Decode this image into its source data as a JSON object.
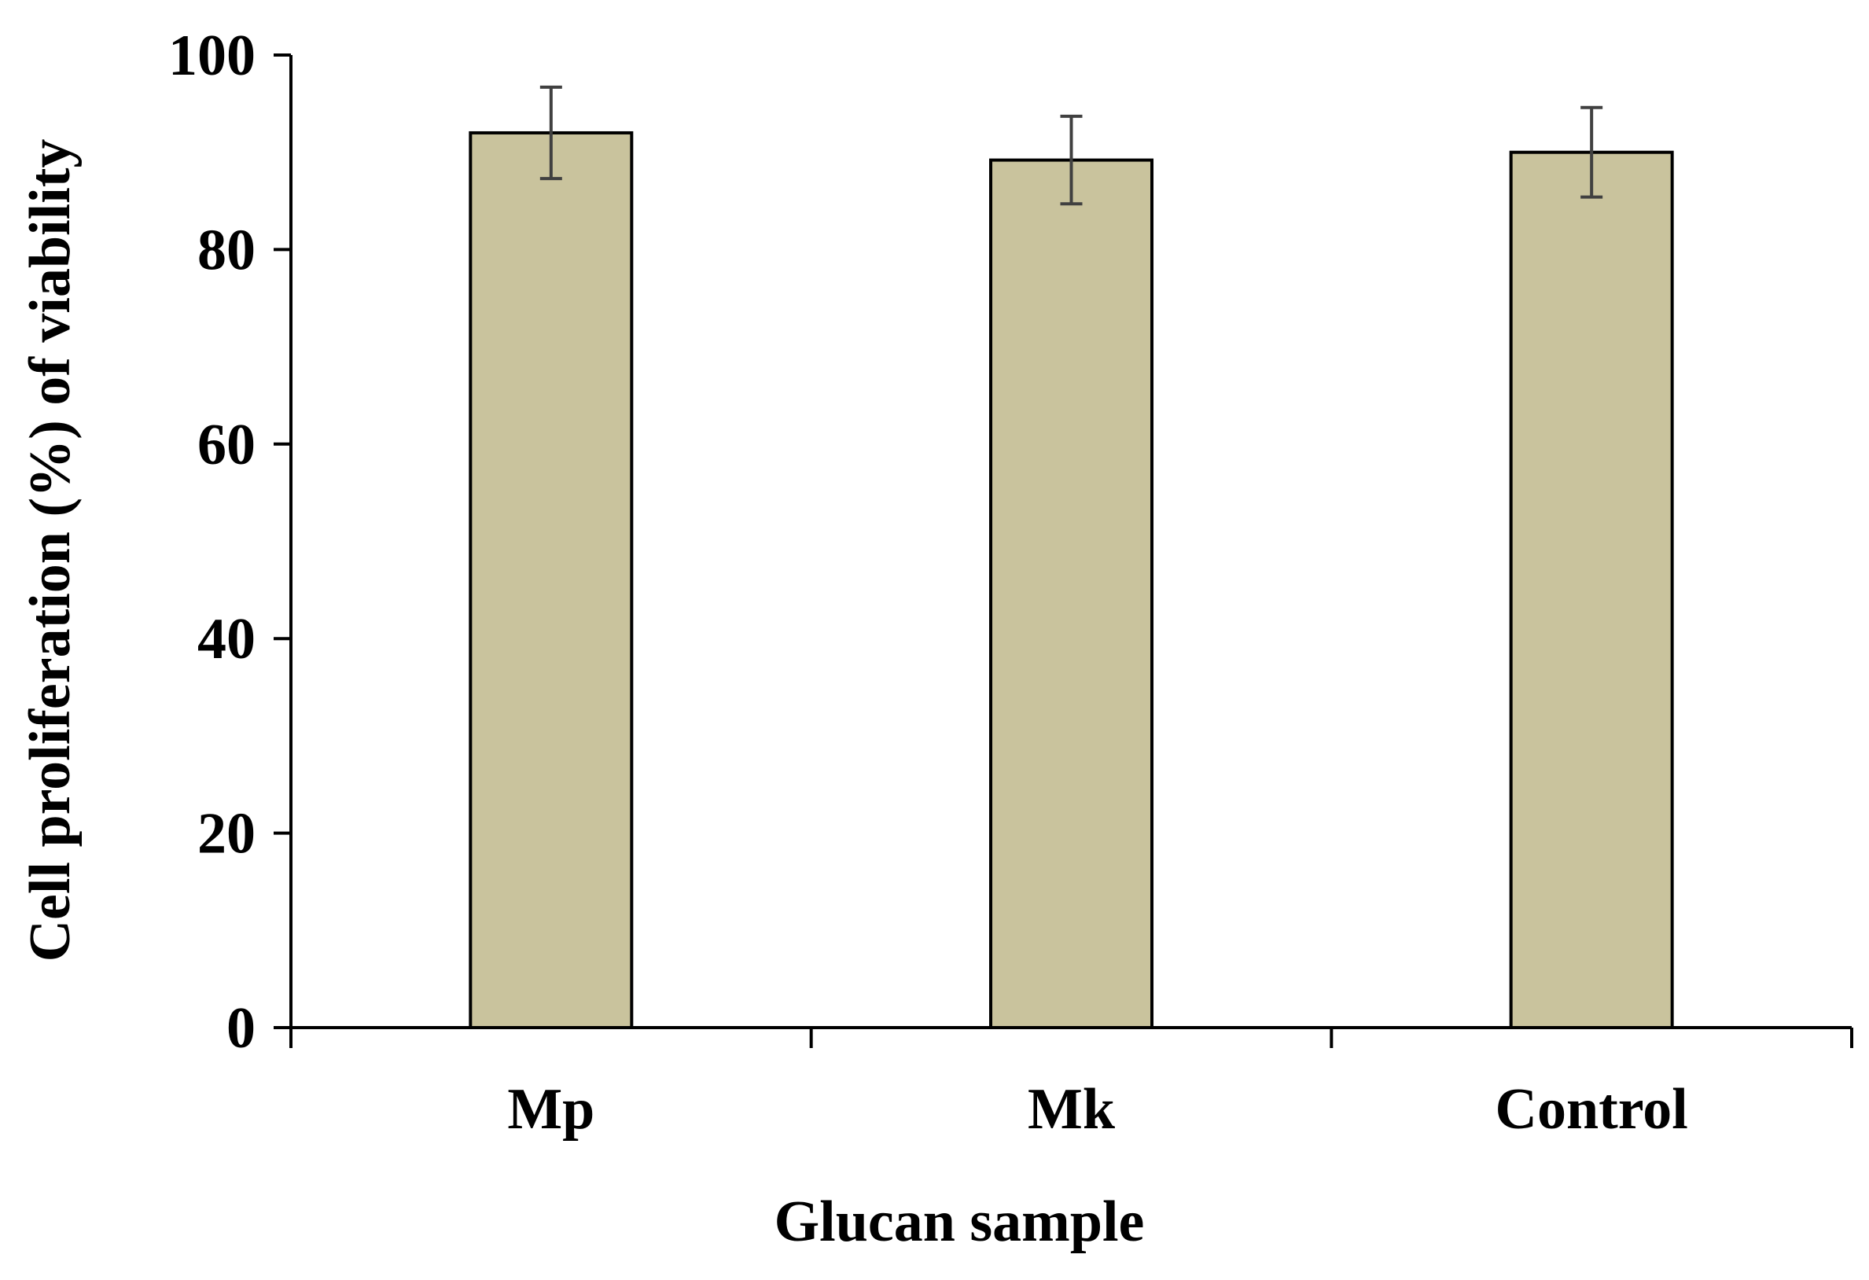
{
  "chart_data": {
    "type": "bar",
    "title": "",
    "xlabel": "Glucan sample",
    "ylabel": "Cell proliferation  (%) of viability",
    "categories": [
      "Mp",
      "Mk",
      "Control"
    ],
    "values": [
      92,
      89.2,
      90
    ],
    "error": [
      4.7,
      4.5,
      4.6
    ],
    "ylim": [
      0,
      100
    ],
    "yticks": [
      "0",
      "20",
      "40",
      "60",
      "80",
      "100"
    ],
    "grid": false,
    "legend": "none",
    "colors": {
      "bar_fill": "#c9c39d",
      "bar_stroke": "#000000",
      "axis": "#000000",
      "error_bar": "#404040"
    }
  }
}
